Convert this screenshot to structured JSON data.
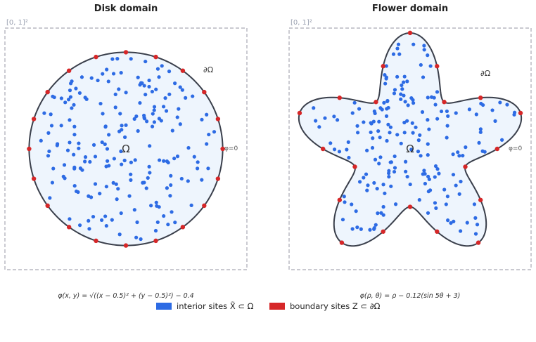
{
  "colors": {
    "interior": "#2d6be4",
    "boundary": "#d62728",
    "domain_fill": "#eef5fd",
    "domain_stroke": "#3a3f4b",
    "frame": "#a9a9b5"
  },
  "panels": [
    {
      "id": "disk",
      "title": "Disk domain",
      "unit_square_label": "[0, 1]²",
      "omega_label": "Ω",
      "boundary_label": "∂Ω",
      "zero_level_label": "φ=0",
      "formula": "φ(x, y) = √((x − 0.5)² + (y − 0.5)²) − 0.4",
      "shape": {
        "type": "disk",
        "center": [
          0.5,
          0.5
        ],
        "radius": 0.4
      },
      "boundary_site_count": 20,
      "interior_site_count": 200
    },
    {
      "id": "flower",
      "title": "Flower domain",
      "unit_square_label": "[0, 1]²",
      "omega_label": "Ω",
      "boundary_label": "∂Ω",
      "zero_level_label": "φ=0",
      "formula": "φ(ρ, θ) = ρ − 0.12(sin 5θ + 3)",
      "shape": {
        "type": "flower",
        "center": [
          0.5,
          0.5
        ],
        "petals": 5,
        "amplitude": 0.12,
        "offset": 3
      },
      "boundary_site_count": 20,
      "interior_site_count": 200
    }
  ],
  "legend": {
    "interior": "interior sites X̃ ⊂ Ω",
    "boundary": "boundary sites Z ⊂ ∂Ω"
  }
}
